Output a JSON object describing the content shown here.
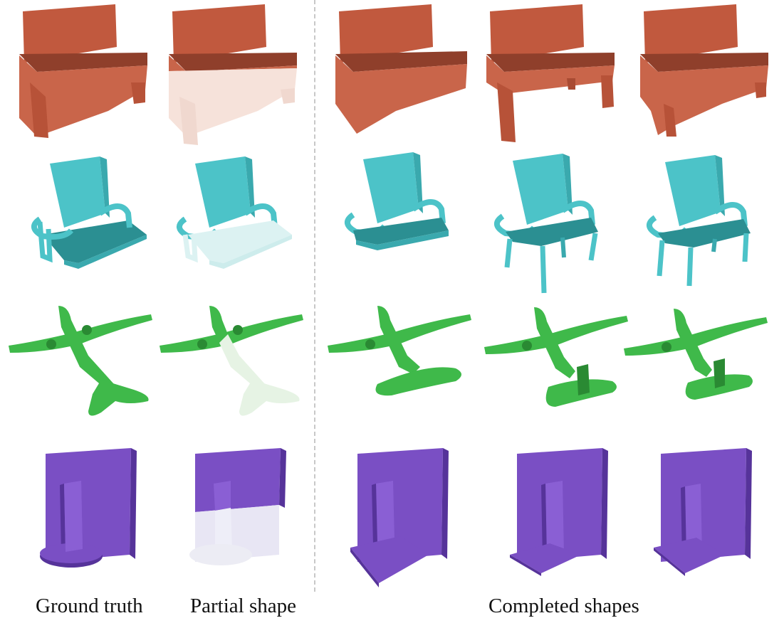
{
  "captions": {
    "ground_truth": "Ground truth",
    "partial_shape": "Partial shape",
    "completed_shapes": "Completed shapes"
  },
  "colors": {
    "sofa": "#c9654a",
    "sofa_dark": "#8f3f2b",
    "sofa_ghost": "#f6e2da",
    "chair": "#4cc3c8",
    "chair_dark": "#2b8f92",
    "chair_ghost": "#dcf2f2",
    "plane": "#3fb94a",
    "plane_dark": "#2a8a33",
    "plane_ghost": "#e6f3e4",
    "monitor": "#7a4fc4",
    "monitor_dark": "#56339a",
    "monitor_ghost": "#e8e6f4",
    "divider": "#c8c8c8"
  },
  "rows": [
    {
      "category": "sofa",
      "shapes": [
        "ground-truth",
        "partial",
        "completion-1",
        "completion-2",
        "completion-3"
      ]
    },
    {
      "category": "chair",
      "shapes": [
        "ground-truth",
        "partial",
        "completion-1",
        "completion-2",
        "completion-3"
      ]
    },
    {
      "category": "airplane",
      "shapes": [
        "ground-truth",
        "partial",
        "completion-1",
        "completion-2",
        "completion-3"
      ]
    },
    {
      "category": "monitor",
      "shapes": [
        "ground-truth",
        "partial",
        "completion-1",
        "completion-2",
        "completion-3"
      ]
    }
  ]
}
